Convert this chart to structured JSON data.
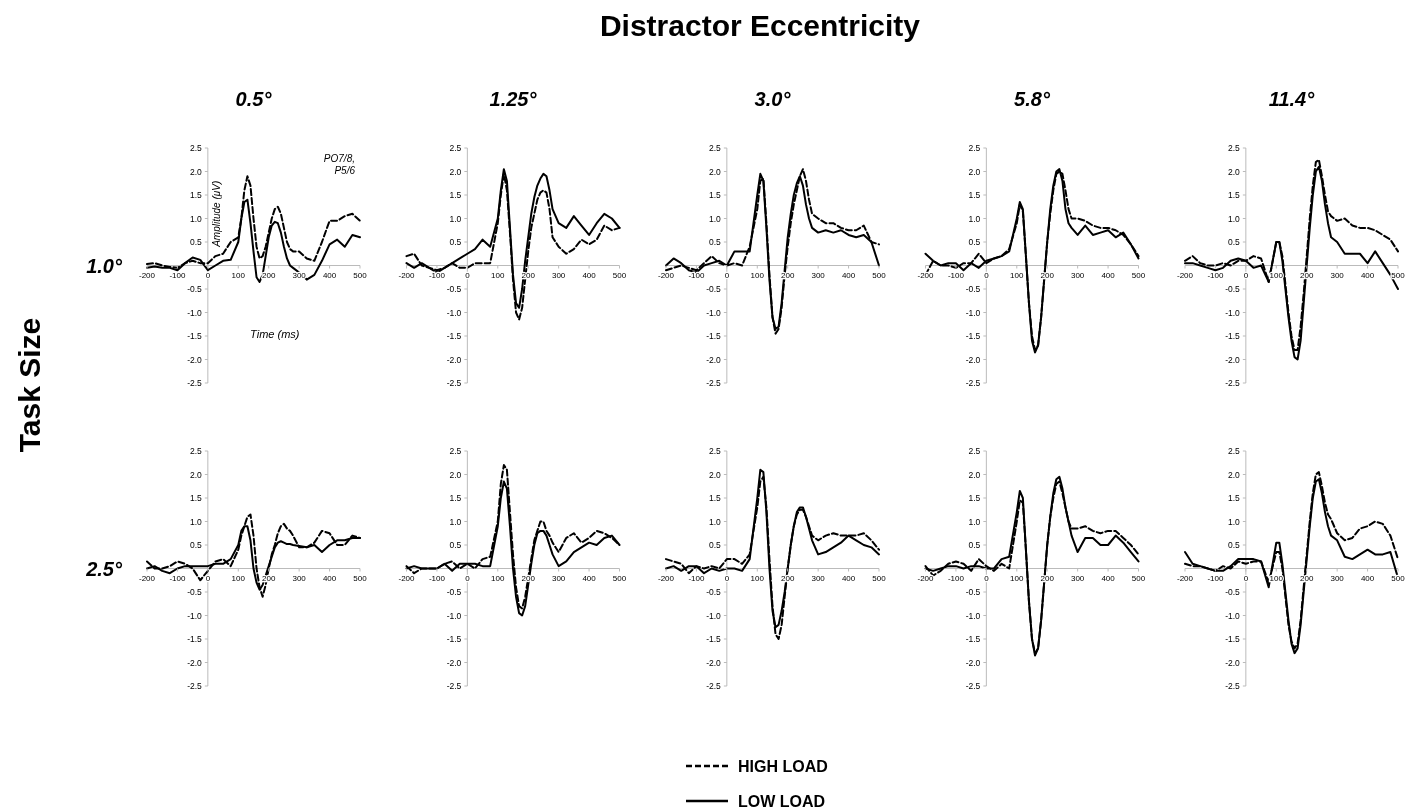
{
  "chart_data": [
    {
      "type": "line",
      "title": "0.5°",
      "xlabel": "Time (ms)",
      "ylabel": "Amplitude (μV)",
      "annotations": [
        "1.0°",
        "PO7/8, P5/6",
        "Distractor Eccentricity",
        "Task Size"
      ],
      "xlim": [
        -200,
        500
      ],
      "ylim": [
        -2.5,
        2.5
      ],
      "xticks": [
        -200,
        -100,
        0,
        100,
        200,
        300,
        400,
        500
      ],
      "yticks": [
        {
          "value": -2.5,
          "label": "-2.5"
        },
        {
          "value": -2,
          "label": "-2.0"
        },
        {
          "value": -1.5,
          "label": "-1.5"
        },
        {
          "value": -1,
          "label": "-1.0"
        },
        {
          "value": -0.5,
          "label": "-0.5"
        },
        {
          "value": 0,
          "label": null
        },
        {
          "value": 0.5,
          "label": "0.5"
        },
        {
          "value": 1,
          "label": "1.0"
        },
        {
          "value": 1.5,
          "label": "1.5"
        },
        {
          "value": 2,
          "label": "2.0"
        },
        {
          "value": 2.5,
          "label": "2.5"
        }
      ],
      "grid": false,
      "x": [
        -200,
        -175,
        -150,
        -125,
        -100,
        -75,
        -50,
        -25,
        0,
        25,
        50,
        75,
        100,
        110,
        120,
        130,
        140,
        150,
        160,
        170,
        180,
        190,
        200,
        210,
        220,
        230,
        240,
        250,
        260,
        270,
        280,
        300,
        325,
        350,
        375,
        400,
        425,
        450,
        475,
        500
      ],
      "series": [
        {
          "color": "#000000",
          "line_style": "dashed",
          "values": [
            0.03,
            0.05,
            0,
            -0.03,
            -0.05,
            0.05,
            0.1,
            0.05,
            0.05,
            0.2,
            0.25,
            0.5,
            0.6,
            1.0,
            1.6,
            1.9,
            1.7,
            1.0,
            0.4,
            0.15,
            0.2,
            0.4,
            0.7,
            1.0,
            1.2,
            1.25,
            1.1,
            0.8,
            0.5,
            0.35,
            0.3,
            0.3,
            0.15,
            0.1,
            0.5,
            0.95,
            0.95,
            1.05,
            1.1,
            0.95
          ]
        },
        {
          "color": "#000000",
          "line_style": "solid",
          "values": [
            -0.05,
            -0.02,
            -0.05,
            -0.05,
            -0.1,
            0.05,
            0.17,
            0.12,
            -0.1,
            0.0,
            0.1,
            0.12,
            0.5,
            1.0,
            1.35,
            1.4,
            0.9,
            0.3,
            -0.25,
            -0.35,
            -0.2,
            0.2,
            0.6,
            0.85,
            0.93,
            0.9,
            0.7,
            0.4,
            0.15,
            0.0,
            -0.05,
            -0.15,
            -0.3,
            -0.2,
            0.1,
            0.45,
            0.55,
            0.4,
            0.65,
            0.6
          ]
        }
      ]
    },
    {
      "type": "line",
      "title": "1.25°",
      "xlim": [
        -200,
        500
      ],
      "ylim": [
        -2.5,
        2.5
      ],
      "xticks": [
        -200,
        -100,
        0,
        100,
        200,
        300,
        400,
        500
      ],
      "yticks": [
        {
          "value": -2.5,
          "label": "-2.5"
        },
        {
          "value": -2,
          "label": "-2.0"
        },
        {
          "value": -1.5,
          "label": "-1.5"
        },
        {
          "value": -1,
          "label": "-1.0"
        },
        {
          "value": -0.5,
          "label": "-0.5"
        },
        {
          "value": 0,
          "label": null
        },
        {
          "value": 0.5,
          "label": "0.5"
        },
        {
          "value": 1,
          "label": "1.0"
        },
        {
          "value": 1.5,
          "label": "1.5"
        },
        {
          "value": 2,
          "label": "2.0"
        },
        {
          "value": 2.5,
          "label": "2.5"
        }
      ],
      "grid": false,
      "x": [
        -200,
        -175,
        -150,
        -125,
        -100,
        -75,
        -50,
        -25,
        0,
        25,
        50,
        75,
        100,
        110,
        120,
        130,
        140,
        150,
        160,
        170,
        180,
        190,
        200,
        210,
        220,
        230,
        240,
        250,
        260,
        270,
        280,
        300,
        325,
        350,
        375,
        400,
        425,
        450,
        475,
        500
      ],
      "series": [
        {
          "color": "#000000",
          "line_style": "dashed",
          "values": [
            0.2,
            0.25,
            0.0,
            -0.05,
            -0.1,
            -0.05,
            0.05,
            -0.05,
            -0.05,
            0.05,
            0.05,
            0.05,
            0.9,
            1.5,
            1.95,
            1.6,
            0.7,
            -0.3,
            -1.0,
            -1.15,
            -0.9,
            -0.3,
            0.3,
            0.8,
            1.1,
            1.4,
            1.55,
            1.6,
            1.55,
            1.2,
            0.6,
            0.4,
            0.25,
            0.35,
            0.55,
            0.45,
            0.55,
            0.85,
            0.75,
            0.8
          ]
        },
        {
          "color": "#000000",
          "line_style": "solid",
          "values": [
            0.05,
            -0.05,
            0.05,
            -0.05,
            -0.15,
            -0.05,
            0.05,
            0.15,
            0.25,
            0.35,
            0.55,
            0.4,
            1.0,
            1.6,
            2.05,
            1.8,
            0.8,
            -0.2,
            -0.8,
            -0.9,
            -0.5,
            0.1,
            0.6,
            1.1,
            1.45,
            1.7,
            1.85,
            1.95,
            1.9,
            1.6,
            1.2,
            0.9,
            0.8,
            1.05,
            0.85,
            0.65,
            0.9,
            1.1,
            1.0,
            0.8
          ]
        }
      ]
    },
    {
      "type": "line",
      "title": "3.0°",
      "xlim": [
        -200,
        500
      ],
      "ylim": [
        -2.5,
        2.5
      ],
      "xticks": [
        -200,
        -100,
        0,
        100,
        200,
        300,
        400,
        500
      ],
      "yticks": [
        {
          "value": -2.5,
          "label": "-2.5"
        },
        {
          "value": -2,
          "label": "-2.0"
        },
        {
          "value": -1.5,
          "label": "-1.5"
        },
        {
          "value": -1,
          "label": "-1.0"
        },
        {
          "value": -0.5,
          "label": "-0.5"
        },
        {
          "value": 0,
          "label": null
        },
        {
          "value": 0.5,
          "label": "0.5"
        },
        {
          "value": 1,
          "label": "1.0"
        },
        {
          "value": 1.5,
          "label": "1.5"
        },
        {
          "value": 2,
          "label": "2.0"
        },
        {
          "value": 2.5,
          "label": "2.5"
        }
      ],
      "grid": false,
      "x": [
        -200,
        -175,
        -150,
        -125,
        -100,
        -75,
        -50,
        -25,
        0,
        25,
        50,
        75,
        100,
        110,
        120,
        130,
        140,
        150,
        160,
        170,
        180,
        190,
        200,
        210,
        220,
        230,
        240,
        250,
        260,
        270,
        280,
        300,
        325,
        350,
        375,
        400,
        425,
        450,
        475,
        500
      ],
      "series": [
        {
          "color": "#000000",
          "line_style": "dashed",
          "values": [
            -0.1,
            -0.05,
            0.0,
            -0.05,
            -0.1,
            0.05,
            0.2,
            0.05,
            0.0,
            0.05,
            0.0,
            0.4,
            1.2,
            1.8,
            1.85,
            0.9,
            -0.2,
            -1.1,
            -1.45,
            -1.35,
            -0.9,
            -0.2,
            0.4,
            0.9,
            1.3,
            1.6,
            1.9,
            2.05,
            1.8,
            1.4,
            1.1,
            1.0,
            0.9,
            0.9,
            0.8,
            0.75,
            0.75,
            0.85,
            0.5,
            0.45
          ]
        },
        {
          "color": "#000000",
          "line_style": "solid",
          "values": [
            0.0,
            0.15,
            0.05,
            -0.1,
            -0.15,
            0.0,
            0.05,
            0.1,
            0.0,
            0.3,
            0.3,
            0.3,
            1.5,
            1.95,
            1.8,
            0.8,
            -0.3,
            -1.1,
            -1.35,
            -1.3,
            -0.8,
            -0.1,
            0.6,
            1.1,
            1.5,
            1.75,
            1.9,
            1.7,
            1.3,
            1.0,
            0.8,
            0.7,
            0.75,
            0.7,
            0.75,
            0.65,
            0.6,
            0.65,
            0.5,
            0.0
          ]
        }
      ]
    },
    {
      "type": "line",
      "title": "5.8°",
      "xlim": [
        -200,
        500
      ],
      "ylim": [
        -2.5,
        2.5
      ],
      "xticks": [
        -200,
        -100,
        0,
        100,
        200,
        300,
        400,
        500
      ],
      "yticks": [
        {
          "value": -2.5,
          "label": "-2.5"
        },
        {
          "value": -2,
          "label": "-2.0"
        },
        {
          "value": -1.5,
          "label": "-1.5"
        },
        {
          "value": -1,
          "label": "-1.0"
        },
        {
          "value": -0.5,
          "label": "-0.5"
        },
        {
          "value": 0,
          "label": null
        },
        {
          "value": 0.5,
          "label": "0.5"
        },
        {
          "value": 1,
          "label": "1.0"
        },
        {
          "value": 1.5,
          "label": "1.5"
        },
        {
          "value": 2,
          "label": "2.0"
        },
        {
          "value": 2.5,
          "label": "2.5"
        }
      ],
      "grid": false,
      "x": [
        -200,
        -175,
        -150,
        -125,
        -100,
        -75,
        -50,
        -25,
        0,
        25,
        50,
        75,
        100,
        110,
        120,
        130,
        140,
        150,
        160,
        170,
        180,
        190,
        200,
        210,
        220,
        230,
        240,
        250,
        260,
        270,
        280,
        300,
        325,
        350,
        375,
        400,
        425,
        450,
        475,
        500
      ],
      "series": [
        {
          "color": "#000000",
          "line_style": "dashed",
          "values": [
            -0.2,
            0.1,
            0.0,
            0.0,
            -0.05,
            0.05,
            0.05,
            0.25,
            0.05,
            0.15,
            0.2,
            0.35,
            0.9,
            1.3,
            1.15,
            0.2,
            -0.8,
            -1.5,
            -1.8,
            -1.7,
            -1.1,
            -0.3,
            0.5,
            1.1,
            1.6,
            1.95,
            2.0,
            1.95,
            1.6,
            1.2,
            1.0,
            1.0,
            0.95,
            0.85,
            0.8,
            0.8,
            0.75,
            0.65,
            0.45,
            0.2
          ]
        },
        {
          "color": "#000000",
          "line_style": "solid",
          "values": [
            0.25,
            0.1,
            0.0,
            0.05,
            0.05,
            -0.1,
            0.05,
            -0.05,
            0.1,
            0.15,
            0.2,
            0.3,
            1.0,
            1.35,
            1.2,
            0.2,
            -0.8,
            -1.6,
            -1.85,
            -1.7,
            -1.1,
            -0.3,
            0.5,
            1.2,
            1.7,
            2.0,
            2.05,
            1.8,
            1.2,
            0.9,
            0.8,
            0.65,
            0.85,
            0.65,
            0.7,
            0.75,
            0.6,
            0.7,
            0.45,
            0.15
          ]
        }
      ]
    },
    {
      "type": "line",
      "title": "11.4°",
      "xlim": [
        -200,
        500
      ],
      "ylim": [
        -2.5,
        2.5
      ],
      "xticks": [
        -200,
        -100,
        0,
        100,
        200,
        300,
        400,
        500
      ],
      "yticks": [
        {
          "value": -2.5,
          "label": "-2.5"
        },
        {
          "value": -2,
          "label": "-2.0"
        },
        {
          "value": -1.5,
          "label": "-1.5"
        },
        {
          "value": -1,
          "label": "-1.0"
        },
        {
          "value": -0.5,
          "label": "-0.5"
        },
        {
          "value": 0,
          "label": null
        },
        {
          "value": 0.5,
          "label": "0.5"
        },
        {
          "value": 1,
          "label": "1.0"
        },
        {
          "value": 1.5,
          "label": "1.5"
        },
        {
          "value": 2,
          "label": "2.0"
        },
        {
          "value": 2.5,
          "label": "2.5"
        }
      ],
      "grid": false,
      "x": [
        -200,
        -175,
        -150,
        -125,
        -100,
        -75,
        -50,
        -25,
        0,
        25,
        50,
        75,
        100,
        110,
        120,
        130,
        140,
        150,
        160,
        170,
        180,
        190,
        200,
        210,
        220,
        230,
        240,
        250,
        260,
        270,
        280,
        300,
        325,
        350,
        375,
        400,
        425,
        450,
        475,
        500
      ],
      "series": [
        {
          "color": "#000000",
          "line_style": "dashed",
          "values": [
            0.1,
            0.2,
            0.05,
            0.0,
            0.0,
            0.05,
            0.0,
            0.1,
            0.1,
            0.2,
            0.15,
            -0.35,
            0.5,
            0.5,
            0.2,
            -0.4,
            -1.0,
            -1.5,
            -1.8,
            -1.8,
            -1.3,
            -0.6,
            0.2,
            1.0,
            1.7,
            2.2,
            2.25,
            1.9,
            1.5,
            1.15,
            1.05,
            0.95,
            1.0,
            0.85,
            0.8,
            0.8,
            0.75,
            0.65,
            0.55,
            0.3
          ]
        },
        {
          "color": "#000000",
          "line_style": "solid",
          "values": [
            0.05,
            0.05,
            0.0,
            -0.05,
            -0.1,
            -0.05,
            0.1,
            0.15,
            0.1,
            -0.05,
            0.0,
            -0.35,
            0.5,
            0.5,
            0.1,
            -0.5,
            -1.1,
            -1.6,
            -1.95,
            -2.0,
            -1.6,
            -0.8,
            0.0,
            0.8,
            1.5,
            2.0,
            2.1,
            1.8,
            1.3,
            0.9,
            0.6,
            0.5,
            0.25,
            0.25,
            0.25,
            0.05,
            0.3,
            0.05,
            -0.2,
            -0.5
          ]
        }
      ]
    },
    {
      "type": "line",
      "annotations": [
        "2.5°"
      ],
      "xlim": [
        -200,
        500
      ],
      "ylim": [
        -2.5,
        2.5
      ],
      "xticks": [
        -200,
        -100,
        0,
        100,
        200,
        300,
        400,
        500
      ],
      "yticks": [
        {
          "value": -2.5,
          "label": "-2.5"
        },
        {
          "value": -2,
          "label": "-2.0"
        },
        {
          "value": -1.5,
          "label": "-1.5"
        },
        {
          "value": -1,
          "label": "-1.0"
        },
        {
          "value": -0.5,
          "label": "-0.5"
        },
        {
          "value": 0,
          "label": null
        },
        {
          "value": 0.5,
          "label": "0.5"
        },
        {
          "value": 1,
          "label": "1.0"
        },
        {
          "value": 1.5,
          "label": "1.5"
        },
        {
          "value": 2,
          "label": "2.0"
        },
        {
          "value": 2.5,
          "label": "2.5"
        }
      ],
      "grid": false,
      "x": [
        -200,
        -175,
        -150,
        -125,
        -100,
        -75,
        -50,
        -25,
        0,
        25,
        50,
        75,
        100,
        110,
        120,
        130,
        140,
        150,
        160,
        170,
        180,
        190,
        200,
        210,
        220,
        230,
        240,
        250,
        260,
        270,
        280,
        300,
        325,
        350,
        375,
        400,
        425,
        450,
        475,
        500
      ],
      "series": [
        {
          "color": "#000000",
          "line_style": "dashed",
          "values": [
            0.15,
            0.0,
            0.0,
            0.05,
            0.15,
            0.1,
            0.0,
            -0.25,
            -0.05,
            0.15,
            0.2,
            0.05,
            0.4,
            0.7,
            0.9,
            1.1,
            1.15,
            0.7,
            0.0,
            -0.4,
            -0.6,
            -0.35,
            0.0,
            0.3,
            0.5,
            0.75,
            0.9,
            0.95,
            0.85,
            0.8,
            0.7,
            0.45,
            0.45,
            0.55,
            0.8,
            0.75,
            0.5,
            0.5,
            0.7,
            0.65
          ]
        },
        {
          "color": "#000000",
          "line_style": "solid",
          "values": [
            0.0,
            0.05,
            -0.05,
            -0.1,
            0.0,
            0.05,
            0.05,
            0.05,
            0.05,
            0.1,
            0.1,
            0.2,
            0.5,
            0.8,
            0.9,
            0.9,
            0.6,
            0.0,
            -0.3,
            -0.45,
            -0.35,
            -0.15,
            0.05,
            0.25,
            0.45,
            0.55,
            0.58,
            0.55,
            0.52,
            0.52,
            0.5,
            0.48,
            0.45,
            0.5,
            0.35,
            0.5,
            0.6,
            0.6,
            0.65,
            0.65
          ]
        }
      ]
    },
    {
      "type": "line",
      "xlim": [
        -200,
        500
      ],
      "ylim": [
        -2.5,
        2.5
      ],
      "xticks": [
        -200,
        -100,
        0,
        100,
        200,
        300,
        400,
        500
      ],
      "yticks": [
        {
          "value": -2.5,
          "label": "-2.5"
        },
        {
          "value": -2,
          "label": "-2.0"
        },
        {
          "value": -1.5,
          "label": "-1.5"
        },
        {
          "value": -1,
          "label": "-1.0"
        },
        {
          "value": -0.5,
          "label": "-0.5"
        },
        {
          "value": 0,
          "label": null
        },
        {
          "value": 0.5,
          "label": "0.5"
        },
        {
          "value": 1,
          "label": "1.0"
        },
        {
          "value": 1.5,
          "label": "1.5"
        },
        {
          "value": 2,
          "label": "2.0"
        },
        {
          "value": 2.5,
          "label": "2.5"
        }
      ],
      "grid": false,
      "x": [
        -200,
        -175,
        -150,
        -125,
        -100,
        -75,
        -50,
        -25,
        0,
        25,
        50,
        75,
        100,
        110,
        120,
        130,
        140,
        150,
        160,
        170,
        180,
        190,
        200,
        210,
        220,
        230,
        240,
        250,
        260,
        270,
        280,
        300,
        325,
        350,
        375,
        400,
        425,
        450,
        475,
        500
      ],
      "series": [
        {
          "color": "#000000",
          "line_style": "dashed",
          "values": [
            0.05,
            -0.1,
            0.0,
            0.0,
            0.0,
            0.1,
            0.15,
            0.0,
            0.1,
            0.0,
            0.2,
            0.25,
            1.0,
            1.8,
            2.2,
            2.1,
            1.2,
            0.3,
            -0.4,
            -0.8,
            -0.85,
            -0.6,
            -0.2,
            0.2,
            0.6,
            0.8,
            1.0,
            1.0,
            0.8,
            0.7,
            0.55,
            0.35,
            0.65,
            0.75,
            0.55,
            0.65,
            0.8,
            0.75,
            0.65,
            0.5
          ]
        },
        {
          "color": "#000000",
          "line_style": "solid",
          "values": [
            0.0,
            0.05,
            0.0,
            0.0,
            0.0,
            0.1,
            -0.05,
            0.1,
            0.1,
            0.1,
            0.05,
            0.05,
            0.9,
            1.5,
            1.85,
            1.7,
            0.9,
            0.0,
            -0.6,
            -0.95,
            -1.0,
            -0.8,
            -0.35,
            0.1,
            0.5,
            0.75,
            0.8,
            0.8,
            0.7,
            0.5,
            0.3,
            0.05,
            0.15,
            0.35,
            0.45,
            0.55,
            0.5,
            0.65,
            0.7,
            0.5
          ]
        }
      ]
    },
    {
      "type": "line",
      "xlim": [
        -200,
        500
      ],
      "ylim": [
        -2.5,
        2.5
      ],
      "xticks": [
        -200,
        -100,
        0,
        100,
        200,
        300,
        400,
        500
      ],
      "yticks": [
        {
          "value": -2.5,
          "label": "-2.5"
        },
        {
          "value": -2,
          "label": "-2.0"
        },
        {
          "value": -1.5,
          "label": "-1.5"
        },
        {
          "value": -1,
          "label": "-1.0"
        },
        {
          "value": -0.5,
          "label": "-0.5"
        },
        {
          "value": 0,
          "label": null
        },
        {
          "value": 0.5,
          "label": "0.5"
        },
        {
          "value": 1,
          "label": "1.0"
        },
        {
          "value": 1.5,
          "label": "1.5"
        },
        {
          "value": 2,
          "label": "2.0"
        },
        {
          "value": 2.5,
          "label": "2.5"
        }
      ],
      "grid": false,
      "x": [
        -200,
        -175,
        -150,
        -125,
        -100,
        -75,
        -50,
        -25,
        0,
        25,
        50,
        75,
        100,
        110,
        120,
        130,
        140,
        150,
        160,
        170,
        180,
        190,
        200,
        210,
        220,
        230,
        240,
        250,
        260,
        270,
        280,
        300,
        325,
        350,
        375,
        400,
        425,
        450,
        475,
        500
      ],
      "series": [
        {
          "color": "#000000",
          "line_style": "dashed",
          "values": [
            0.2,
            0.15,
            0.1,
            -0.1,
            0.05,
            0.0,
            0.05,
            0.0,
            0.2,
            0.2,
            0.1,
            0.3,
            1.3,
            1.85,
            1.95,
            1.3,
            0.2,
            -0.8,
            -1.4,
            -1.5,
            -1.2,
            -0.6,
            0.0,
            0.5,
            0.9,
            1.15,
            1.25,
            1.25,
            1.1,
            0.9,
            0.7,
            0.6,
            0.7,
            0.75,
            0.7,
            0.7,
            0.7,
            0.75,
            0.6,
            0.4
          ]
        },
        {
          "color": "#000000",
          "line_style": "solid",
          "values": [
            0.0,
            0.05,
            -0.05,
            0.05,
            0.05,
            -0.1,
            0.0,
            -0.05,
            0.0,
            0.0,
            -0.05,
            0.2,
            1.5,
            2.1,
            2.05,
            1.2,
            0.0,
            -0.9,
            -1.25,
            -1.2,
            -0.9,
            -0.5,
            0.0,
            0.5,
            0.9,
            1.2,
            1.3,
            1.3,
            1.1,
            0.85,
            0.6,
            0.3,
            0.35,
            0.45,
            0.55,
            0.7,
            0.6,
            0.5,
            0.45,
            0.3
          ]
        }
      ]
    },
    {
      "type": "line",
      "xlim": [
        -200,
        500
      ],
      "ylim": [
        -2.5,
        2.5
      ],
      "xticks": [
        -200,
        -100,
        0,
        100,
        200,
        300,
        400,
        500
      ],
      "yticks": [
        {
          "value": -2.5,
          "label": "-2.5"
        },
        {
          "value": -2,
          "label": "-2.0"
        },
        {
          "value": -1.5,
          "label": "-1.5"
        },
        {
          "value": -1,
          "label": "-1.0"
        },
        {
          "value": -0.5,
          "label": "-0.5"
        },
        {
          "value": 0,
          "label": null
        },
        {
          "value": 0.5,
          "label": "0.5"
        },
        {
          "value": 1,
          "label": "1.0"
        },
        {
          "value": 1.5,
          "label": "1.5"
        },
        {
          "value": 2,
          "label": "2.0"
        },
        {
          "value": 2.5,
          "label": "2.5"
        }
      ],
      "grid": false,
      "x": [
        -200,
        -175,
        -150,
        -125,
        -100,
        -75,
        -50,
        -25,
        0,
        25,
        50,
        75,
        100,
        110,
        120,
        130,
        140,
        150,
        160,
        170,
        180,
        190,
        200,
        210,
        220,
        230,
        240,
        250,
        260,
        270,
        280,
        300,
        325,
        350,
        375,
        400,
        425,
        450,
        475,
        500
      ],
      "series": [
        {
          "color": "#000000",
          "line_style": "dashed",
          "values": [
            0.05,
            -0.15,
            -0.05,
            0.1,
            0.15,
            0.1,
            -0.05,
            0.2,
            0.05,
            -0.05,
            0.1,
            0.0,
            1.0,
            1.45,
            1.4,
            0.4,
            -0.7,
            -1.5,
            -1.8,
            -1.7,
            -1.1,
            -0.3,
            0.5,
            1.1,
            1.5,
            1.8,
            1.85,
            1.6,
            1.3,
            1.0,
            0.85,
            0.85,
            0.9,
            0.8,
            0.75,
            0.8,
            0.8,
            0.65,
            0.5,
            0.3
          ]
        },
        {
          "color": "#000000",
          "line_style": "solid",
          "values": [
            0.0,
            -0.05,
            0.0,
            0.05,
            0.05,
            0.0,
            0.05,
            0.05,
            0.0,
            0.0,
            0.2,
            0.25,
            1.2,
            1.65,
            1.5,
            0.4,
            -0.7,
            -1.5,
            -1.85,
            -1.7,
            -1.1,
            -0.3,
            0.5,
            1.1,
            1.6,
            1.9,
            1.95,
            1.7,
            1.3,
            1.0,
            0.7,
            0.35,
            0.65,
            0.65,
            0.5,
            0.5,
            0.7,
            0.55,
            0.35,
            0.15
          ]
        }
      ]
    },
    {
      "type": "line",
      "legend": "bottom",
      "xlim": [
        -200,
        500
      ],
      "ylim": [
        -2.5,
        2.5
      ],
      "xticks": [
        -200,
        -100,
        0,
        100,
        200,
        300,
        400,
        500
      ],
      "yticks": [
        {
          "value": -2.5,
          "label": "-2.5"
        },
        {
          "value": -2,
          "label": "-2.0"
        },
        {
          "value": -1.5,
          "label": "-1.5"
        },
        {
          "value": -1,
          "label": "-1.0"
        },
        {
          "value": -0.5,
          "label": "-0.5"
        },
        {
          "value": 0,
          "label": null
        },
        {
          "value": 0.5,
          "label": "0.5"
        },
        {
          "value": 1,
          "label": "1.0"
        },
        {
          "value": 1.5,
          "label": "1.5"
        },
        {
          "value": 2,
          "label": "2.0"
        },
        {
          "value": 2.5,
          "label": "2.5"
        }
      ],
      "grid": false,
      "x": [
        -200,
        -175,
        -150,
        -125,
        -100,
        -75,
        -50,
        -25,
        0,
        25,
        50,
        75,
        100,
        110,
        120,
        130,
        140,
        150,
        160,
        170,
        180,
        190,
        200,
        210,
        220,
        230,
        240,
        250,
        260,
        270,
        280,
        300,
        325,
        350,
        375,
        400,
        425,
        450,
        475,
        500
      ],
      "series": [
        {
          "name": "HIGH LOAD",
          "color": "#000000",
          "line_style": "dashed",
          "values": [
            0.1,
            0.05,
            0.05,
            0.0,
            -0.05,
            0.05,
            0.0,
            0.15,
            0.1,
            0.15,
            0.15,
            -0.3,
            0.35,
            0.35,
            0.0,
            -0.6,
            -1.2,
            -1.55,
            -1.7,
            -1.6,
            -1.1,
            -0.4,
            0.3,
            1.0,
            1.6,
            2.0,
            2.05,
            1.75,
            1.4,
            1.15,
            1.05,
            0.75,
            0.6,
            0.65,
            0.85,
            0.9,
            1.0,
            0.95,
            0.7,
            0.2
          ]
        },
        {
          "name": "LOW LOAD",
          "color": "#000000",
          "line_style": "solid",
          "values": [
            0.35,
            0.1,
            0.05,
            0.0,
            -0.05,
            -0.05,
            0.05,
            0.2,
            0.2,
            0.2,
            0.15,
            -0.4,
            0.55,
            0.55,
            0.1,
            -0.5,
            -1.1,
            -1.6,
            -1.8,
            -1.7,
            -1.2,
            -0.5,
            0.2,
            0.9,
            1.5,
            1.85,
            1.9,
            1.6,
            1.2,
            0.9,
            0.7,
            0.6,
            0.25,
            0.2,
            0.3,
            0.4,
            0.3,
            0.3,
            0.35,
            -0.2
          ]
        }
      ]
    }
  ]
}
